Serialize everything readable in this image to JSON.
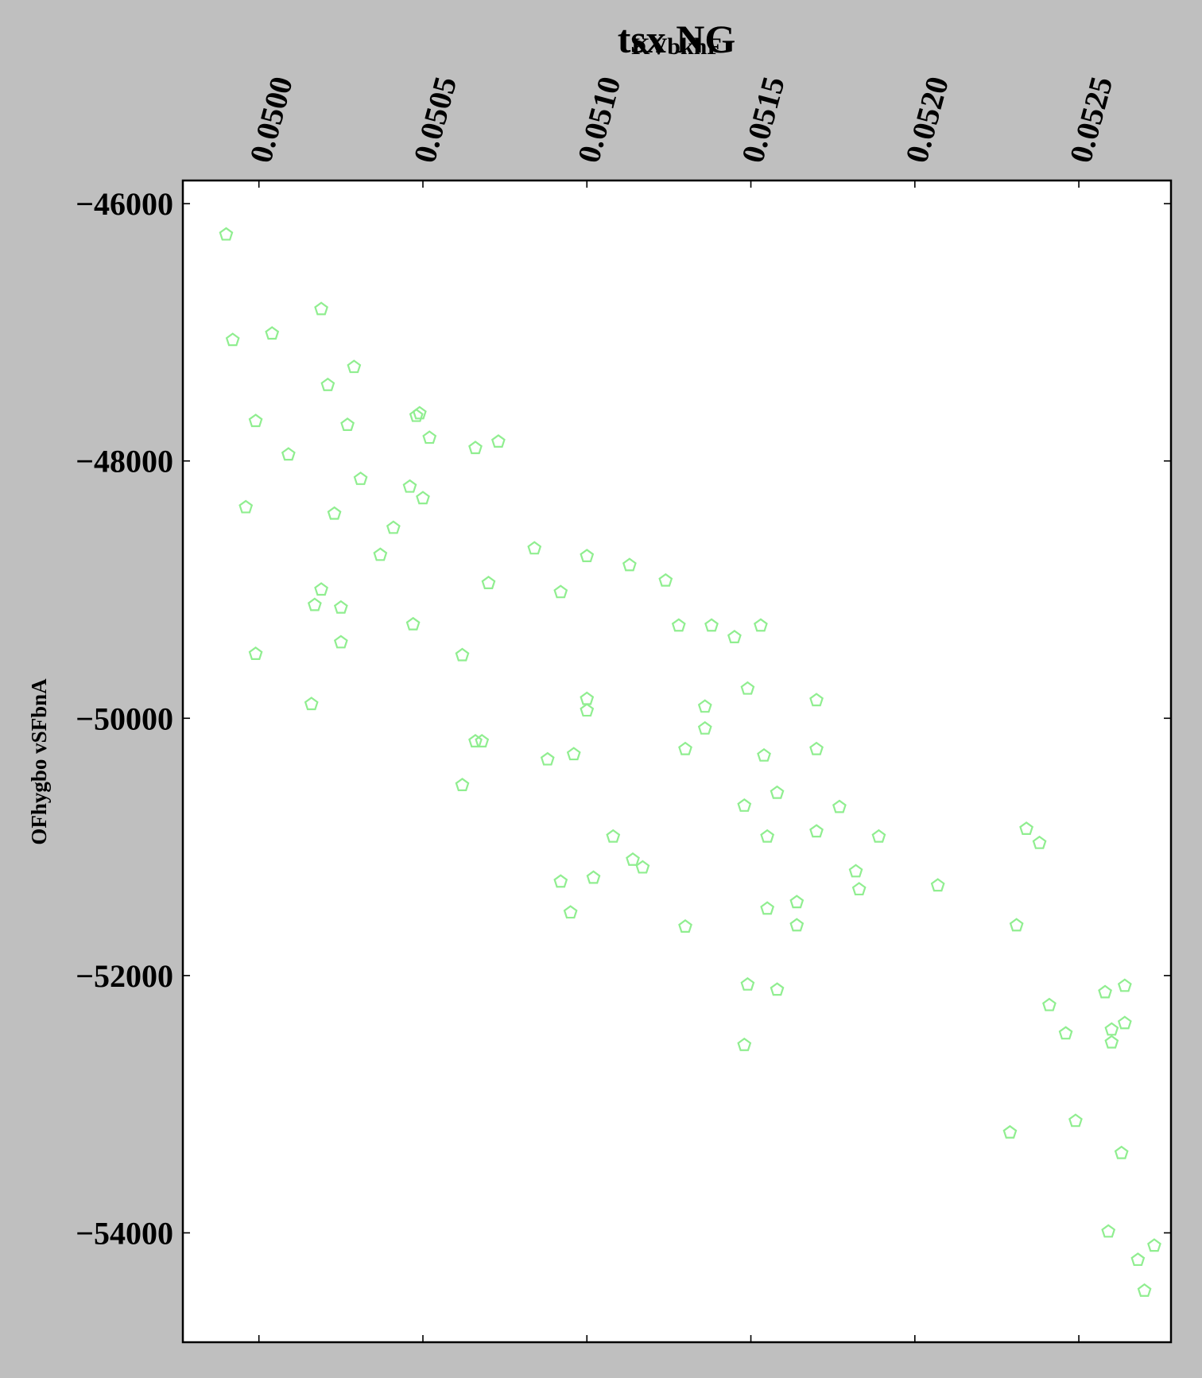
{
  "chart_data": {
    "type": "scatter",
    "title": "tsx NG",
    "xlabel": "KVbkhF",
    "ylabel": "OFhygbo vSFbnA",
    "x_ticks": [
      0.05,
      0.0505,
      0.051,
      0.0515,
      0.052,
      0.0525
    ],
    "x_tick_labels": [
      "0.0500",
      "0.0505",
      "0.0510",
      "0.0515",
      "0.0520",
      "0.0525"
    ],
    "y_ticks": [
      -46000,
      -48000,
      -50000,
      -52000,
      -54000
    ],
    "y_tick_labels": [
      "−46000",
      "−48000",
      "−50000",
      "−52000",
      "−54000"
    ],
    "xlim": [
      0.049768,
      0.052781
    ],
    "ylim": [
      -54850,
      -45820
    ],
    "x_axis_position": "top",
    "grid": false,
    "marker": "pentagon-outline",
    "marker_color": "#90ee90",
    "series": [
      {
        "name": "points",
        "points": [
          [
            0.0499,
            -46240
          ],
          [
            0.04992,
            -47060
          ],
          [
            0.05004,
            -47010
          ],
          [
            0.05019,
            -46820
          ],
          [
            0.05029,
            -47270
          ],
          [
            0.05021,
            -47410
          ],
          [
            0.04999,
            -47690
          ],
          [
            0.05027,
            -47720
          ],
          [
            0.04996,
            -48360
          ],
          [
            0.05009,
            -47950
          ],
          [
            0.05031,
            -48140
          ],
          [
            0.05023,
            -48410
          ],
          [
            0.05048,
            -47650
          ],
          [
            0.05049,
            -47630
          ],
          [
            0.05052,
            -47820
          ],
          [
            0.05066,
            -47900
          ],
          [
            0.05073,
            -47850
          ],
          [
            0.05046,
            -48200
          ],
          [
            0.0505,
            -48290
          ],
          [
            0.05041,
            -48520
          ],
          [
            0.05037,
            -48730
          ],
          [
            0.05017,
            -49120
          ],
          [
            0.05019,
            -49000
          ],
          [
            0.05025,
            -49140
          ],
          [
            0.04999,
            -49500
          ],
          [
            0.05025,
            -49410
          ],
          [
            0.05047,
            -49270
          ],
          [
            0.05016,
            -49890
          ],
          [
            0.05062,
            -49510
          ],
          [
            0.0507,
            -48950
          ],
          [
            0.05084,
            -48680
          ],
          [
            0.05092,
            -49020
          ],
          [
            0.051,
            -48740
          ],
          [
            0.05113,
            -48810
          ],
          [
            0.05124,
            -48930
          ],
          [
            0.05128,
            -49280
          ],
          [
            0.05138,
            -49280
          ],
          [
            0.05145,
            -49370
          ],
          [
            0.05153,
            -49280
          ],
          [
            0.051,
            -49850
          ],
          [
            0.051,
            -49940
          ],
          [
            0.05136,
            -49910
          ],
          [
            0.05136,
            -50080
          ],
          [
            0.0513,
            -50240
          ],
          [
            0.05149,
            -49770
          ],
          [
            0.0517,
            -49860
          ],
          [
            0.05066,
            -50180
          ],
          [
            0.05068,
            -50180
          ],
          [
            0.05062,
            -50520
          ],
          [
            0.05088,
            -50320
          ],
          [
            0.05096,
            -50280
          ],
          [
            0.05154,
            -50290
          ],
          [
            0.0517,
            -50240
          ],
          [
            0.05158,
            -50580
          ],
          [
            0.05148,
            -50680
          ],
          [
            0.05177,
            -50690
          ],
          [
            0.05155,
            -50920
          ],
          [
            0.0517,
            -50880
          ],
          [
            0.05189,
            -50920
          ],
          [
            0.05108,
            -50920
          ],
          [
            0.05114,
            -51100
          ],
          [
            0.05117,
            -51160
          ],
          [
            0.05092,
            -51270
          ],
          [
            0.05102,
            -51240
          ],
          [
            0.05095,
            -51510
          ],
          [
            0.0513,
            -51620
          ],
          [
            0.05164,
            -51430
          ],
          [
            0.05164,
            -51610
          ],
          [
            0.05155,
            -51480
          ],
          [
            0.05182,
            -51190
          ],
          [
            0.05183,
            -51330
          ],
          [
            0.05207,
            -51300
          ],
          [
            0.05149,
            -52070
          ],
          [
            0.05158,
            -52110
          ],
          [
            0.05148,
            -52540
          ],
          [
            0.05234,
            -50860
          ],
          [
            0.05238,
            -50970
          ],
          [
            0.05231,
            -51610
          ],
          [
            0.05241,
            -52230
          ],
          [
            0.05246,
            -52450
          ],
          [
            0.05258,
            -52130
          ],
          [
            0.05264,
            -52080
          ],
          [
            0.0526,
            -52420
          ],
          [
            0.05264,
            -52370
          ],
          [
            0.0526,
            -52520
          ],
          [
            0.05249,
            -53130
          ],
          [
            0.05229,
            -53220
          ],
          [
            0.05263,
            -53380
          ],
          [
            0.05259,
            -53990
          ],
          [
            0.05268,
            -54210
          ],
          [
            0.05273,
            -54100
          ],
          [
            0.0527,
            -54450
          ]
        ]
      }
    ]
  }
}
